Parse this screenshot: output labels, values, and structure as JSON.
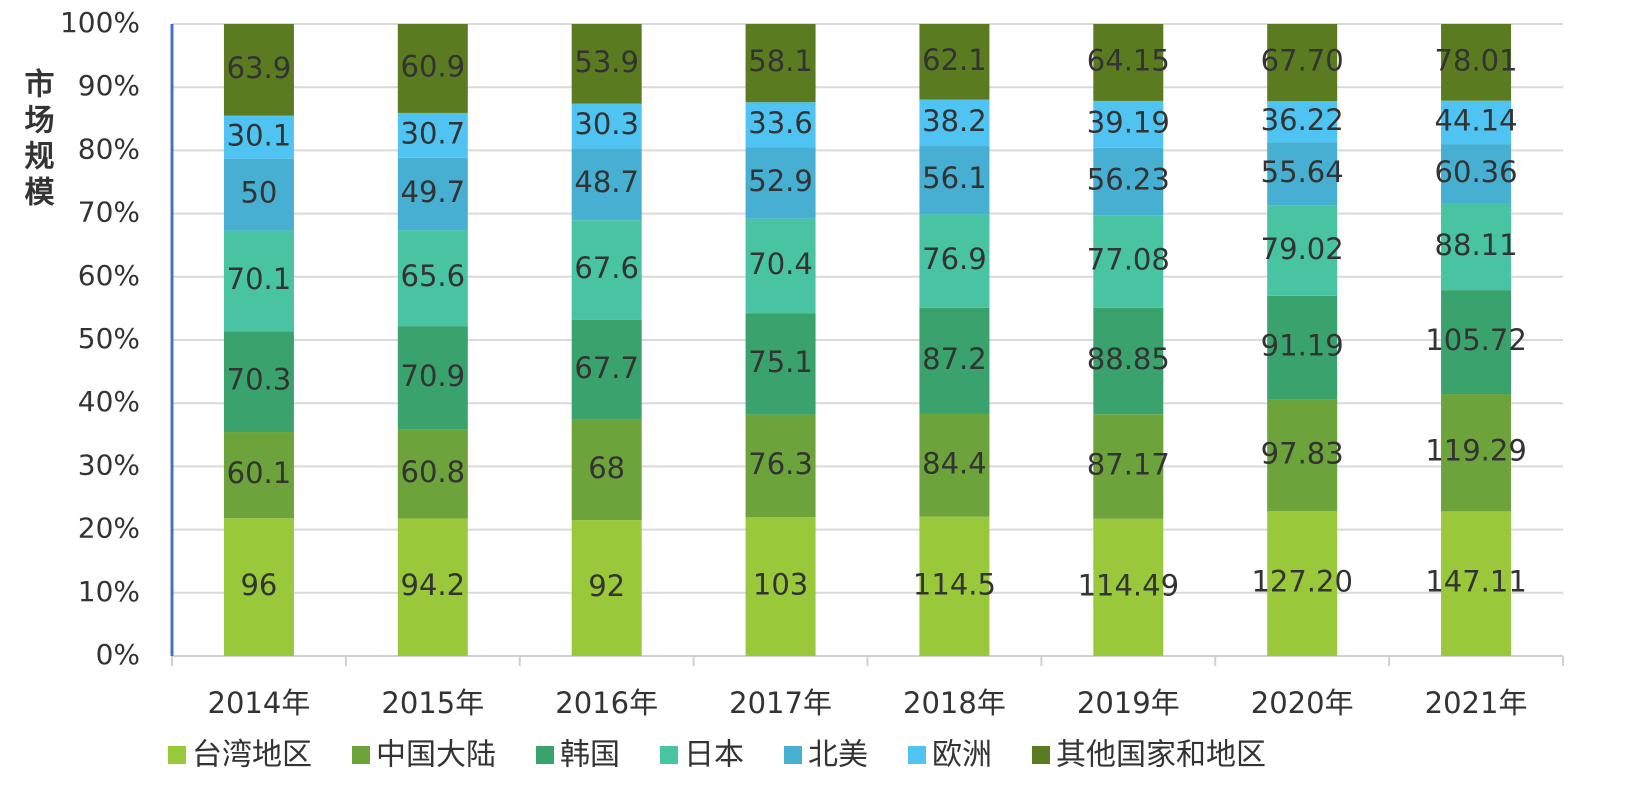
{
  "chart_data": {
    "type": "bar",
    "stacked": "percent",
    "y_label": "市场规模",
    "categories": [
      "2014年",
      "2015年",
      "2016年",
      "2017年",
      "2018年",
      "2019年",
      "2020年",
      "2021年"
    ],
    "series": [
      {
        "name": "台湾地区",
        "color": "#99c93a",
        "values": [
          96,
          94.2,
          92,
          103,
          114.5,
          114.49,
          127.2,
          147.11
        ],
        "value_labels": [
          "96",
          "94.2",
          "92",
          "103",
          "114.5",
          "114.49",
          "127.20",
          "147.11"
        ]
      },
      {
        "name": "中国大陆",
        "color": "#6ca33b",
        "values": [
          60.1,
          60.8,
          68,
          76.3,
          84.4,
          87.17,
          97.83,
          119.29
        ]
      },
      {
        "name": "韩国",
        "color": "#3aa36d",
        "values": [
          70.3,
          70.9,
          67.7,
          75.1,
          87.2,
          88.85,
          91.19,
          105.72
        ]
      },
      {
        "name": "日本",
        "color": "#48c4a3",
        "values": [
          70.1,
          65.6,
          67.6,
          70.4,
          76.9,
          77.08,
          79.02,
          88.11
        ]
      },
      {
        "name": "北美",
        "color": "#46afd2",
        "values": [
          50,
          49.7,
          48.7,
          52.9,
          56.1,
          56.23,
          55.64,
          60.36
        ]
      },
      {
        "name": "欧洲",
        "color": "#4fc4f2",
        "values": [
          30.1,
          30.7,
          30.3,
          33.6,
          38.2,
          39.19,
          36.22,
          44.14
        ]
      },
      {
        "name": "其他国家和地区",
        "color": "#5b7b21",
        "values": [
          63.9,
          60.9,
          53.9,
          58.1,
          62.1,
          64.15,
          67.7,
          78.01
        ],
        "value_labels": [
          "63.9",
          "60.9",
          "53.9",
          "58.1",
          "62.1",
          "64.15",
          "67.70",
          "78.01"
        ]
      }
    ],
    "ylim": [
      0,
      100
    ],
    "yticks": [
      {
        "value": 0,
        "label": "0%"
      },
      {
        "value": 10,
        "label": "10%"
      },
      {
        "value": 20,
        "label": "20%"
      },
      {
        "value": 30,
        "label": "30%"
      },
      {
        "value": 40,
        "label": "40%"
      },
      {
        "value": 50,
        "label": "50%"
      },
      {
        "value": 60,
        "label": "60%"
      },
      {
        "value": 70,
        "label": "70%"
      },
      {
        "value": 80,
        "label": "80%"
      },
      {
        "value": 90,
        "label": "90%"
      },
      {
        "value": 100,
        "label": "100%"
      }
    ],
    "grid": true,
    "legend": "bottom"
  }
}
